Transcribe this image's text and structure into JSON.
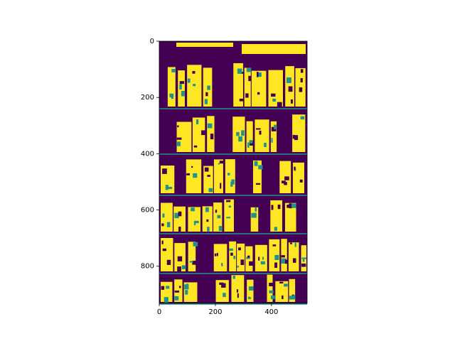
{
  "chart_data": {
    "type": "image",
    "xlim": [
      0,
      527
    ],
    "ylim": [
      932,
      0
    ],
    "xticks": [
      0,
      200,
      400
    ],
    "yticks": [
      0,
      200,
      400,
      600,
      800
    ],
    "cmap_colors": [
      "#440154",
      "#21918c",
      "#fde725"
    ]
  }
}
